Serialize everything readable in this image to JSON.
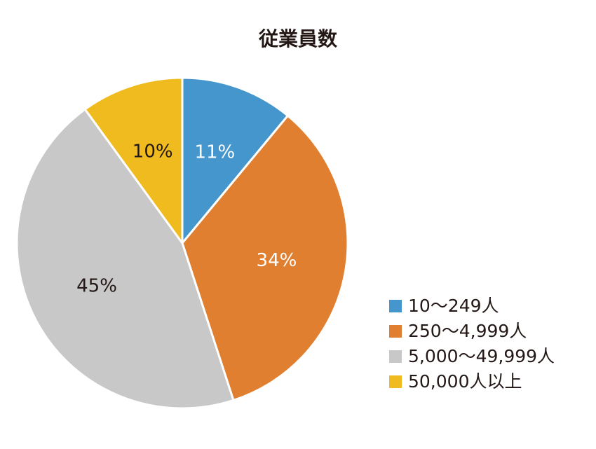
{
  "chart_data": {
    "type": "pie",
    "title": "従業員数",
    "categories": [
      "10〜249人",
      "250〜4,999人",
      "5,000〜49,999人",
      "50,000人以上"
    ],
    "values": [
      11,
      34,
      45,
      10
    ],
    "value_labels": [
      "11%",
      "34%",
      "45%",
      "10%"
    ],
    "colors": [
      "#4596cd",
      "#e07f30",
      "#c8c8c8",
      "#f0bb1e"
    ],
    "legend": "bottom-right"
  }
}
